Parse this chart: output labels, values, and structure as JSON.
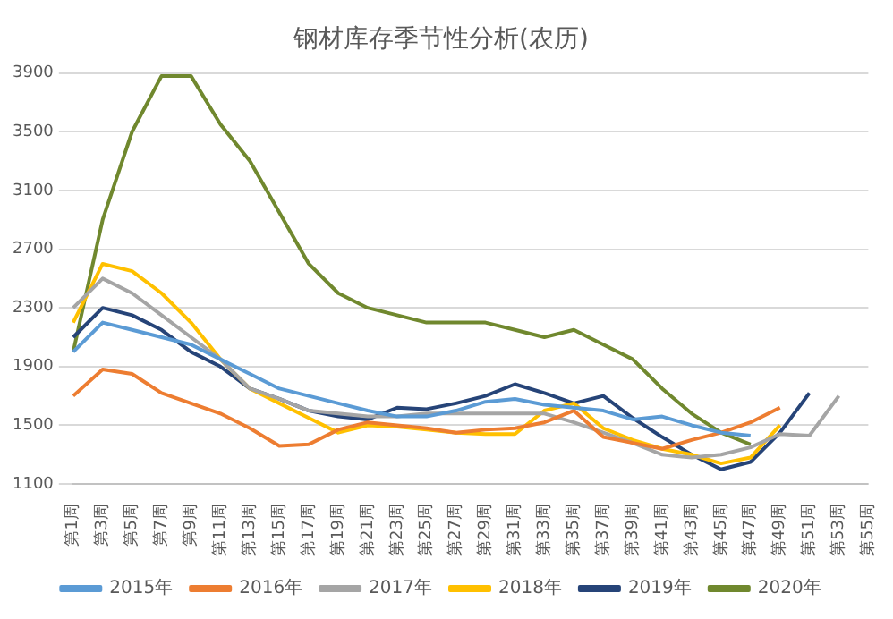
{
  "chart_data": {
    "type": "line",
    "title": "钢材库存季节性分析(农历)",
    "categories": [
      "第1周",
      "第3周",
      "第5周",
      "第7周",
      "第9周",
      "第11周",
      "第13周",
      "第15周",
      "第17周",
      "第19周",
      "第21周",
      "第23周",
      "第25周",
      "第27周",
      "第29周",
      "第31周",
      "第33周",
      "第35周",
      "第37周",
      "第39周",
      "第41周",
      "第43周",
      "第45周",
      "第47周",
      "第49周",
      "第51周",
      "第53周",
      "第55周"
    ],
    "series": [
      {
        "name": "2015年",
        "color": "#5b9bd5",
        "values": [
          2000,
          2200,
          2150,
          2100,
          2050,
          1950,
          1850,
          1750,
          1700,
          1650,
          1600,
          1560,
          1560,
          1600,
          1660,
          1680,
          1640,
          1620,
          1600,
          1540,
          1560,
          1500,
          1450,
          1430,
          null,
          null,
          null,
          null
        ]
      },
      {
        "name": "2016年",
        "color": "#ed7d31",
        "values": [
          1700,
          1880,
          1850,
          1720,
          1650,
          1580,
          1480,
          1360,
          1370,
          1470,
          1520,
          1500,
          1480,
          1450,
          1470,
          1480,
          1520,
          1600,
          1420,
          1380,
          1340,
          1400,
          1450,
          1520,
          1620,
          null,
          null,
          null
        ]
      },
      {
        "name": "2017年",
        "color": "#a5a5a5",
        "values": [
          2300,
          2500,
          2400,
          2250,
          2100,
          1950,
          1750,
          1680,
          1600,
          1580,
          1560,
          1560,
          1580,
          1580,
          1580,
          1580,
          1580,
          1520,
          1450,
          1380,
          1300,
          1280,
          1300,
          1350,
          1440,
          1430,
          1700,
          null
        ]
      },
      {
        "name": "2018年",
        "color": "#ffc000",
        "values": [
          2200,
          2600,
          2550,
          2400,
          2200,
          1950,
          1750,
          1650,
          1550,
          1450,
          1500,
          1490,
          1470,
          1450,
          1440,
          1440,
          1600,
          1650,
          1480,
          1400,
          1340,
          1300,
          1240,
          1280,
          1500,
          null,
          null,
          null
        ]
      },
      {
        "name": "2019年",
        "color": "#264478",
        "values": [
          2100,
          2300,
          2250,
          2150,
          2000,
          1900,
          1750,
          1680,
          1600,
          1560,
          1540,
          1620,
          1610,
          1650,
          1700,
          1780,
          1720,
          1650,
          1700,
          1550,
          1420,
          1300,
          1200,
          1250,
          1450,
          1720,
          null,
          null
        ]
      },
      {
        "name": "2020年",
        "color": "#70882e",
        "values": [
          2000,
          2900,
          3500,
          3880,
          3880,
          3550,
          3300,
          2950,
          2600,
          2400,
          2300,
          2250,
          2200,
          2200,
          2200,
          2150,
          2100,
          2150,
          2050,
          1950,
          1750,
          1580,
          1450,
          1370,
          null,
          null,
          null,
          null
        ]
      }
    ],
    "ylim": [
      1100,
      3900
    ],
    "yticks": [
      1100,
      1500,
      1900,
      2300,
      2700,
      3100,
      3500,
      3900
    ],
    "grid": "y",
    "legend": "bottom",
    "marker": "none",
    "line_style": "solid"
  }
}
